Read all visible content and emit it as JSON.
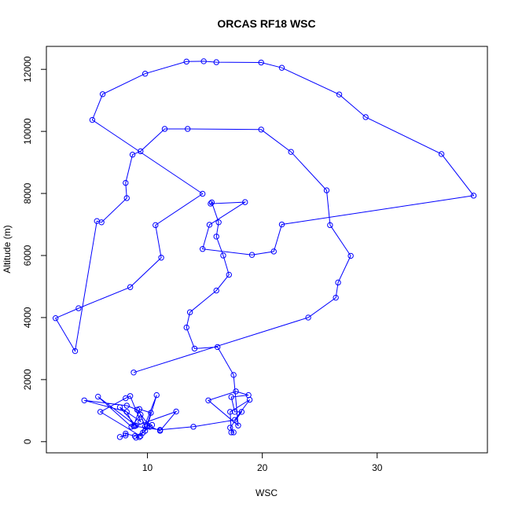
{
  "chart_data": {
    "type": "line",
    "title": "ORCAS RF18 WSC",
    "xlabel": "WSC",
    "ylabel": "Altitude (m)",
    "xlim": [
      1.2,
      39.6
    ],
    "ylim": [
      -360,
      12740
    ],
    "xticks": [
      10,
      20,
      30
    ],
    "yticks": [
      0,
      2000,
      4000,
      6000,
      8000,
      10000,
      12000
    ],
    "grid": false,
    "legend": "none",
    "color": "#0000ff",
    "marker": "open-circle",
    "points": [
      {
        "x": 7.6,
        "y": 150
      },
      {
        "x": 8.1,
        "y": 200
      },
      {
        "x": 8.1,
        "y": 260
      },
      {
        "x": 8.9,
        "y": 180
      },
      {
        "x": 9.3,
        "y": 150
      },
      {
        "x": 9.0,
        "y": 130
      },
      {
        "x": 9.6,
        "y": 290
      },
      {
        "x": 10.4,
        "y": 540
      },
      {
        "x": 10.2,
        "y": 480
      },
      {
        "x": 9.1,
        "y": 1030
      },
      {
        "x": 8.2,
        "y": 1160
      },
      {
        "x": 4.5,
        "y": 1330
      },
      {
        "x": 8.2,
        "y": 960
      },
      {
        "x": 8.8,
        "y": 500
      },
      {
        "x": 9.3,
        "y": 1050
      },
      {
        "x": 10.3,
        "y": 930
      },
      {
        "x": 9.8,
        "y": 350
      },
      {
        "x": 9.8,
        "y": 490
      },
      {
        "x": 9.4,
        "y": 870
      },
      {
        "x": 8.6,
        "y": 480
      },
      {
        "x": 5.7,
        "y": 1450
      },
      {
        "x": 9.0,
        "y": 520
      },
      {
        "x": 7.6,
        "y": 1110
      },
      {
        "x": 9.4,
        "y": 650
      },
      {
        "x": 8.5,
        "y": 1470
      },
      {
        "x": 8.1,
        "y": 1400
      },
      {
        "x": 5.9,
        "y": 960
      },
      {
        "x": 9.4,
        "y": 180
      },
      {
        "x": 10.8,
        "y": 1500
      },
      {
        "x": 10.0,
        "y": 520
      },
      {
        "x": 11.1,
        "y": 350
      },
      {
        "x": 12.5,
        "y": 970
      },
      {
        "x": 8.9,
        "y": 500
      },
      {
        "x": 11.1,
        "y": 380
      },
      {
        "x": 14.0,
        "y": 480
      },
      {
        "x": 17.6,
        "y": 700
      },
      {
        "x": 18.9,
        "y": 1350
      },
      {
        "x": 17.2,
        "y": 960
      },
      {
        "x": 17.3,
        "y": 300
      },
      {
        "x": 17.5,
        "y": 300
      },
      {
        "x": 17.2,
        "y": 450
      },
      {
        "x": 18.2,
        "y": 960
      },
      {
        "x": 17.6,
        "y": 960
      },
      {
        "x": 17.3,
        "y": 1440
      },
      {
        "x": 18.8,
        "y": 1500
      },
      {
        "x": 17.7,
        "y": 1620
      },
      {
        "x": 15.3,
        "y": 1330
      },
      {
        "x": 17.9,
        "y": 520
      },
      {
        "x": 17.5,
        "y": 2150
      },
      {
        "x": 16.1,
        "y": 3050
      },
      {
        "x": 14.1,
        "y": 3000
      },
      {
        "x": 13.4,
        "y": 3680
      },
      {
        "x": 13.7,
        "y": 4170
      },
      {
        "x": 16.0,
        "y": 4870
      },
      {
        "x": 17.1,
        "y": 5380
      },
      {
        "x": 16.6,
        "y": 6000
      },
      {
        "x": 16.0,
        "y": 6610
      },
      {
        "x": 16.2,
        "y": 7070
      },
      {
        "x": 15.6,
        "y": 7710
      },
      {
        "x": 15.5,
        "y": 7670
      },
      {
        "x": 18.5,
        "y": 7720
      },
      {
        "x": 15.4,
        "y": 6990
      },
      {
        "x": 14.8,
        "y": 6210
      },
      {
        "x": 19.1,
        "y": 6020
      },
      {
        "x": 21.0,
        "y": 6130
      },
      {
        "x": 21.7,
        "y": 7000
      },
      {
        "x": 38.4,
        "y": 7930
      },
      {
        "x": 35.6,
        "y": 9270
      },
      {
        "x": 29.0,
        "y": 10460
      },
      {
        "x": 26.7,
        "y": 11190
      },
      {
        "x": 21.7,
        "y": 12050
      },
      {
        "x": 19.9,
        "y": 12220
      },
      {
        "x": 16.0,
        "y": 12230
      },
      {
        "x": 14.9,
        "y": 12260
      },
      {
        "x": 13.4,
        "y": 12250
      },
      {
        "x": 9.8,
        "y": 11860
      },
      {
        "x": 6.1,
        "y": 11200
      },
      {
        "x": 5.2,
        "y": 10370
      },
      {
        "x": 14.8,
        "y": 7990
      },
      {
        "x": 10.7,
        "y": 6980
      },
      {
        "x": 11.2,
        "y": 5930
      },
      {
        "x": 8.5,
        "y": 4980
      },
      {
        "x": 4.0,
        "y": 4300
      },
      {
        "x": 2.0,
        "y": 3980
      },
      {
        "x": 3.7,
        "y": 2920
      },
      {
        "x": 5.6,
        "y": 7110
      },
      {
        "x": 6.0,
        "y": 7070
      },
      {
        "x": 8.2,
        "y": 7850
      },
      {
        "x": 8.1,
        "y": 8340
      },
      {
        "x": 8.7,
        "y": 9250
      },
      {
        "x": 9.4,
        "y": 9360
      },
      {
        "x": 11.5,
        "y": 10080
      },
      {
        "x": 13.5,
        "y": 10080
      },
      {
        "x": 19.9,
        "y": 10060
      },
      {
        "x": 22.5,
        "y": 9340
      },
      {
        "x": 25.6,
        "y": 8100
      },
      {
        "x": 25.9,
        "y": 6980
      },
      {
        "x": 27.7,
        "y": 5990
      },
      {
        "x": 26.6,
        "y": 5130
      },
      {
        "x": 26.4,
        "y": 4640
      },
      {
        "x": 24.0,
        "y": 4000
      },
      {
        "x": 8.8,
        "y": 2230
      }
    ]
  }
}
